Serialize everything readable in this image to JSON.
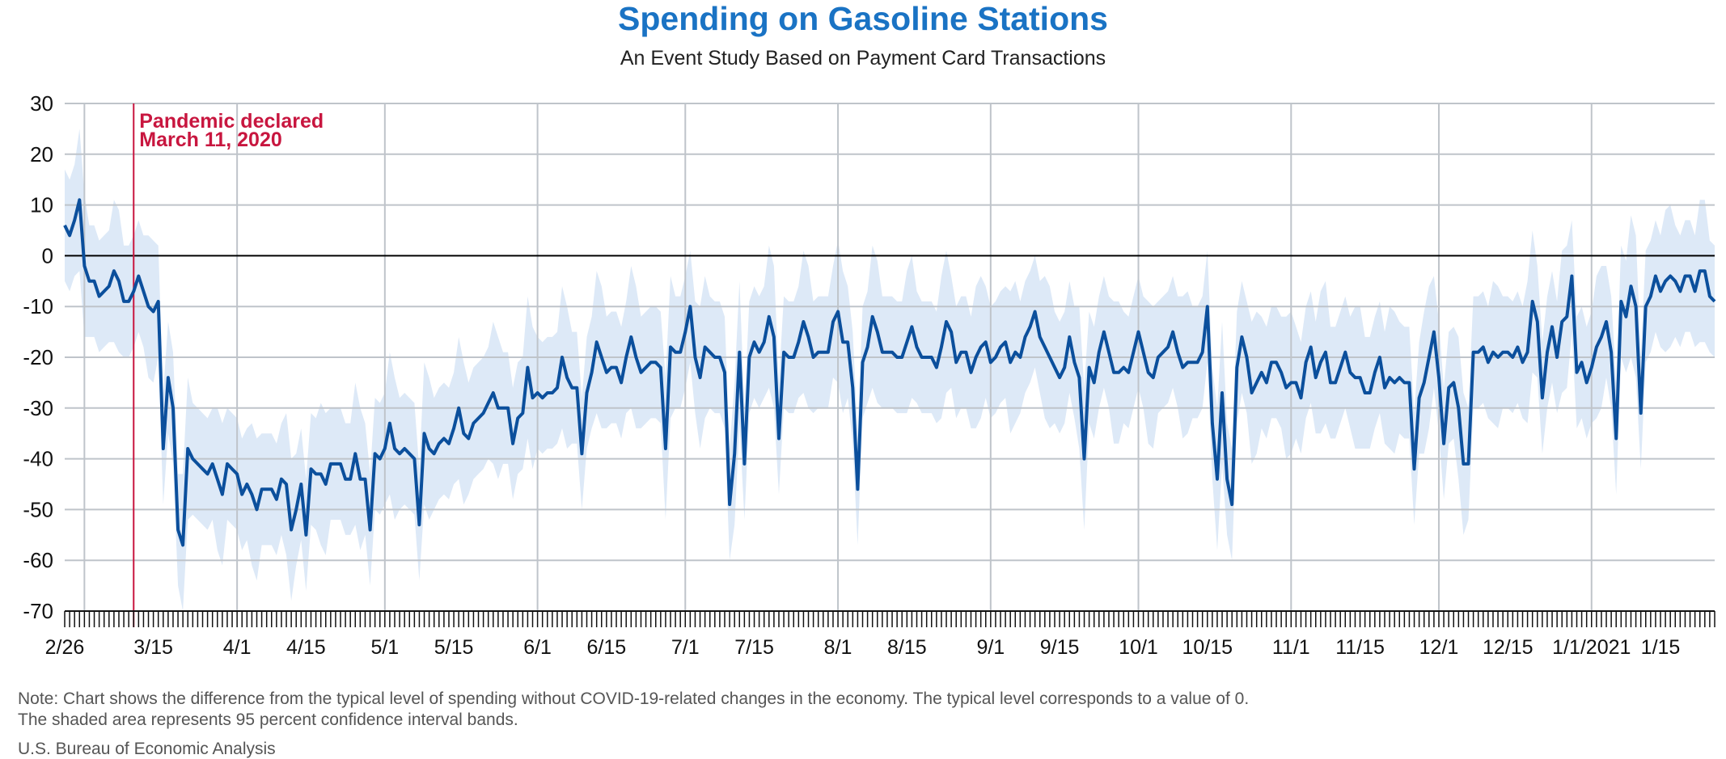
{
  "header": {
    "title": "Spending on Gasoline Stations",
    "subtitle": "An Event Study Based on Payment Card Transactions"
  },
  "footer": {
    "note_line1": "Note: Chart shows the difference from the typical level of spending without COVID-19-related changes in the economy. The typical level corresponds to a value of 0.",
    "note_line2": "The shaded area represents 95 percent confidence interval bands.",
    "source": "U.S. Bureau of Economic Analysis"
  },
  "colors": {
    "line": "#0b4f9c",
    "band": "#dde9f7",
    "event_line": "#c8163f",
    "grid": "#bfc4ca",
    "zero_line": "#000000",
    "title": "#1a73c4"
  },
  "chart_data": {
    "type": "line",
    "title": "Spending on Gasoline Stations",
    "subtitle": "An Event Study Based on Payment Card Transactions",
    "xlabel": "",
    "ylabel": "",
    "ylim": [
      -70,
      30
    ],
    "y_ticks": [
      30,
      20,
      10,
      0,
      -10,
      -20,
      -30,
      -40,
      -50,
      -60,
      -70
    ],
    "start_date": "2020-02-26",
    "x_ticks": [
      {
        "label": "2/26",
        "date": "2020-02-26"
      },
      {
        "label": "3/15",
        "date": "2020-03-15"
      },
      {
        "label": "4/1",
        "date": "2020-04-01"
      },
      {
        "label": "4/15",
        "date": "2020-04-15"
      },
      {
        "label": "5/1",
        "date": "2020-05-01"
      },
      {
        "label": "5/15",
        "date": "2020-05-15"
      },
      {
        "label": "6/1",
        "date": "2020-06-01"
      },
      {
        "label": "6/15",
        "date": "2020-06-15"
      },
      {
        "label": "7/1",
        "date": "2020-07-01"
      },
      {
        "label": "7/15",
        "date": "2020-07-15"
      },
      {
        "label": "8/1",
        "date": "2020-08-01"
      },
      {
        "label": "8/15",
        "date": "2020-08-15"
      },
      {
        "label": "9/1",
        "date": "2020-09-01"
      },
      {
        "label": "9/15",
        "date": "2020-09-15"
      },
      {
        "label": "10/1",
        "date": "2020-10-01"
      },
      {
        "label": "10/15",
        "date": "2020-10-15"
      },
      {
        "label": "11/1",
        "date": "2020-11-01"
      },
      {
        "label": "11/15",
        "date": "2020-11-15"
      },
      {
        "label": "12/1",
        "date": "2020-12-01"
      },
      {
        "label": "12/15",
        "date": "2020-12-15"
      },
      {
        "label": "1/1/2021",
        "date": "2021-01-01"
      },
      {
        "label": "1/15",
        "date": "2021-01-15"
      }
    ],
    "gridlines_x": [
      "2020-03-01",
      "2020-04-01",
      "2020-05-01",
      "2020-06-01",
      "2020-07-01",
      "2020-08-01",
      "2020-09-01",
      "2020-10-01",
      "2020-11-01",
      "2020-12-01",
      "2021-01-01"
    ],
    "grid": true,
    "annotation": {
      "date": "2020-03-11",
      "label_line1": "Pandemic declared",
      "label_line2": "March 11, 2020"
    },
    "band_halfwidth": 11,
    "series": [
      {
        "values": [
          6,
          4,
          7,
          11,
          -2,
          -5,
          -5,
          -8,
          -7,
          -6,
          -3,
          -5,
          -9,
          -9,
          -7,
          -4,
          -7,
          -10,
          -11,
          -9,
          -38,
          -24,
          -30,
          -54,
          -57,
          -38,
          -40,
          -41,
          -42,
          -43,
          -41,
          -44,
          -47,
          -41,
          -42,
          -43,
          -47,
          -45,
          -47,
          -50,
          -46,
          -46,
          -46,
          -48,
          -44,
          -45,
          -54,
          -50,
          -45,
          -55,
          -42,
          -43,
          -43,
          -45,
          -41,
          -41,
          -41,
          -44,
          -44,
          -39,
          -44,
          -44,
          -54,
          -39,
          -40,
          -38,
          -33,
          -38,
          -39,
          -38,
          -39,
          -40,
          -53,
          -35,
          -38,
          -39,
          -37,
          -36,
          -37,
          -34,
          -30,
          -35,
          -36,
          -33,
          -32,
          -31,
          -29,
          -27,
          -30,
          -30,
          -30,
          -37,
          -32,
          -31,
          -22,
          -28,
          -27,
          -28,
          -27,
          -27,
          -26,
          -20,
          -24,
          -26,
          -26,
          -39,
          -27,
          -23,
          -17,
          -20,
          -23,
          -22,
          -22,
          -25,
          -20,
          -16,
          -20,
          -23,
          -22,
          -21,
          -21,
          -22,
          -38,
          -18,
          -19,
          -19,
          -15,
          -10,
          -20,
          -24,
          -18,
          -19,
          -20,
          -20,
          -23,
          -49,
          -39,
          -19,
          -41,
          -20,
          -17,
          -19,
          -17,
          -12,
          -16,
          -36,
          -19,
          -20,
          -20,
          -17,
          -13,
          -16,
          -20,
          -19,
          -19,
          -19,
          -13,
          -11,
          -17,
          -17,
          -26,
          -46,
          -21,
          -18,
          -12,
          -15,
          -19,
          -19,
          -19,
          -20,
          -20,
          -17,
          -14,
          -18,
          -20,
          -20,
          -20,
          -22,
          -18,
          -13,
          -15,
          -21,
          -19,
          -19,
          -23,
          -20,
          -18,
          -17,
          -21,
          -20,
          -18,
          -17,
          -21,
          -19,
          -20,
          -16,
          -14,
          -11,
          -16,
          -18,
          -20,
          -22,
          -24,
          -22,
          -16,
          -21,
          -24,
          -40,
          -22,
          -25,
          -19,
          -15,
          -19,
          -23,
          -23,
          -22,
          -23,
          -19,
          -15,
          -19,
          -23,
          -24,
          -20,
          -19,
          -18,
          -15,
          -19,
          -22,
          -21,
          -21,
          -21,
          -19,
          -10,
          -33,
          -44,
          -27,
          -44,
          -49,
          -22,
          -16,
          -20,
          -27,
          -25,
          -23,
          -25,
          -21,
          -21,
          -23,
          -26,
          -25,
          -25,
          -28,
          -21,
          -18,
          -24,
          -21,
          -19,
          -25,
          -25,
          -22,
          -19,
          -23,
          -24,
          -24,
          -27,
          -27,
          -23,
          -20,
          -26,
          -24,
          -25,
          -24,
          -25,
          -25,
          -42,
          -28,
          -25,
          -20,
          -15,
          -24,
          -37,
          -26,
          -25,
          -30,
          -41,
          -41,
          -19,
          -19,
          -18,
          -21,
          -19,
          -20,
          -19,
          -19,
          -20,
          -18,
          -21,
          -19,
          -9,
          -13,
          -28,
          -19,
          -14,
          -20,
          -13,
          -12,
          -4,
          -23,
          -21,
          -25,
          -22,
          -18,
          -16,
          -13,
          -19,
          -36,
          -9,
          -12,
          -6,
          -10,
          -31,
          -10,
          -8,
          -4,
          -7,
          -5,
          -4,
          -5,
          -7,
          -4,
          -4,
          -7,
          -3,
          -3,
          -8,
          -9
        ]
      }
    ]
  }
}
